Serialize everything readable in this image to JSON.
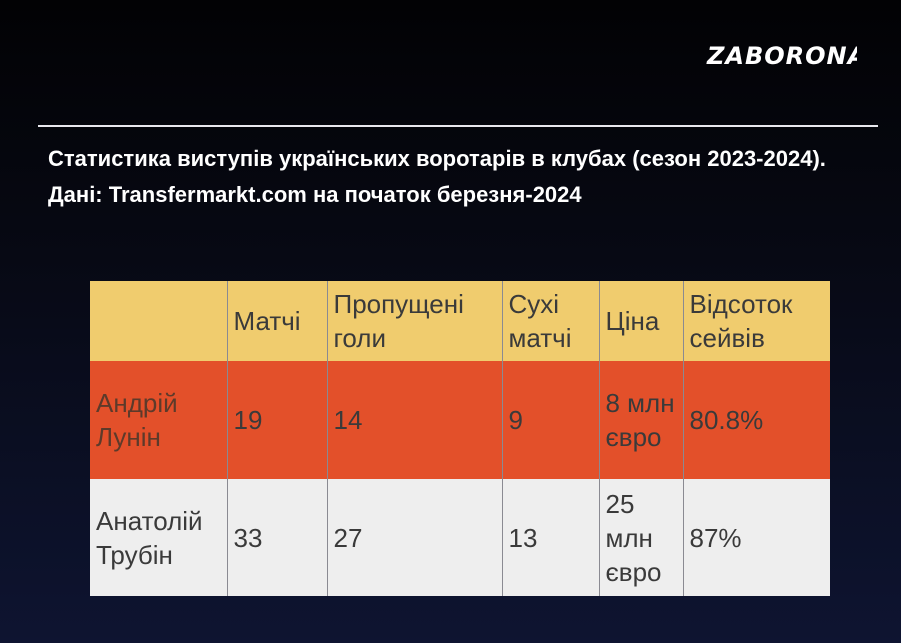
{
  "brand": {
    "logo_text": "ZABORONA"
  },
  "header": {
    "title": "Статистика виступів українських воротарів в клубах (сезон 2023-2024). Дані: Transfermarkt.com на початок березня-2024"
  },
  "colors": {
    "header_row": "#f0cc6e",
    "highlight_row": "#e3502a",
    "plain_row": "#eeeeee",
    "background": "#0e1431"
  },
  "chart_data": {
    "type": "table",
    "columns": [
      "",
      "Матчі",
      "Пропущені голи",
      "Сухі матчі",
      "Ціна",
      "Відсоток сейвів"
    ],
    "rows": [
      [
        "Андрій Лунін",
        "19",
        "14",
        "9",
        "8 млн євро",
        "80.8%"
      ],
      [
        "Анатолій Трубін",
        "33",
        "27",
        "13",
        "25 млн євро",
        "87%"
      ]
    ]
  }
}
